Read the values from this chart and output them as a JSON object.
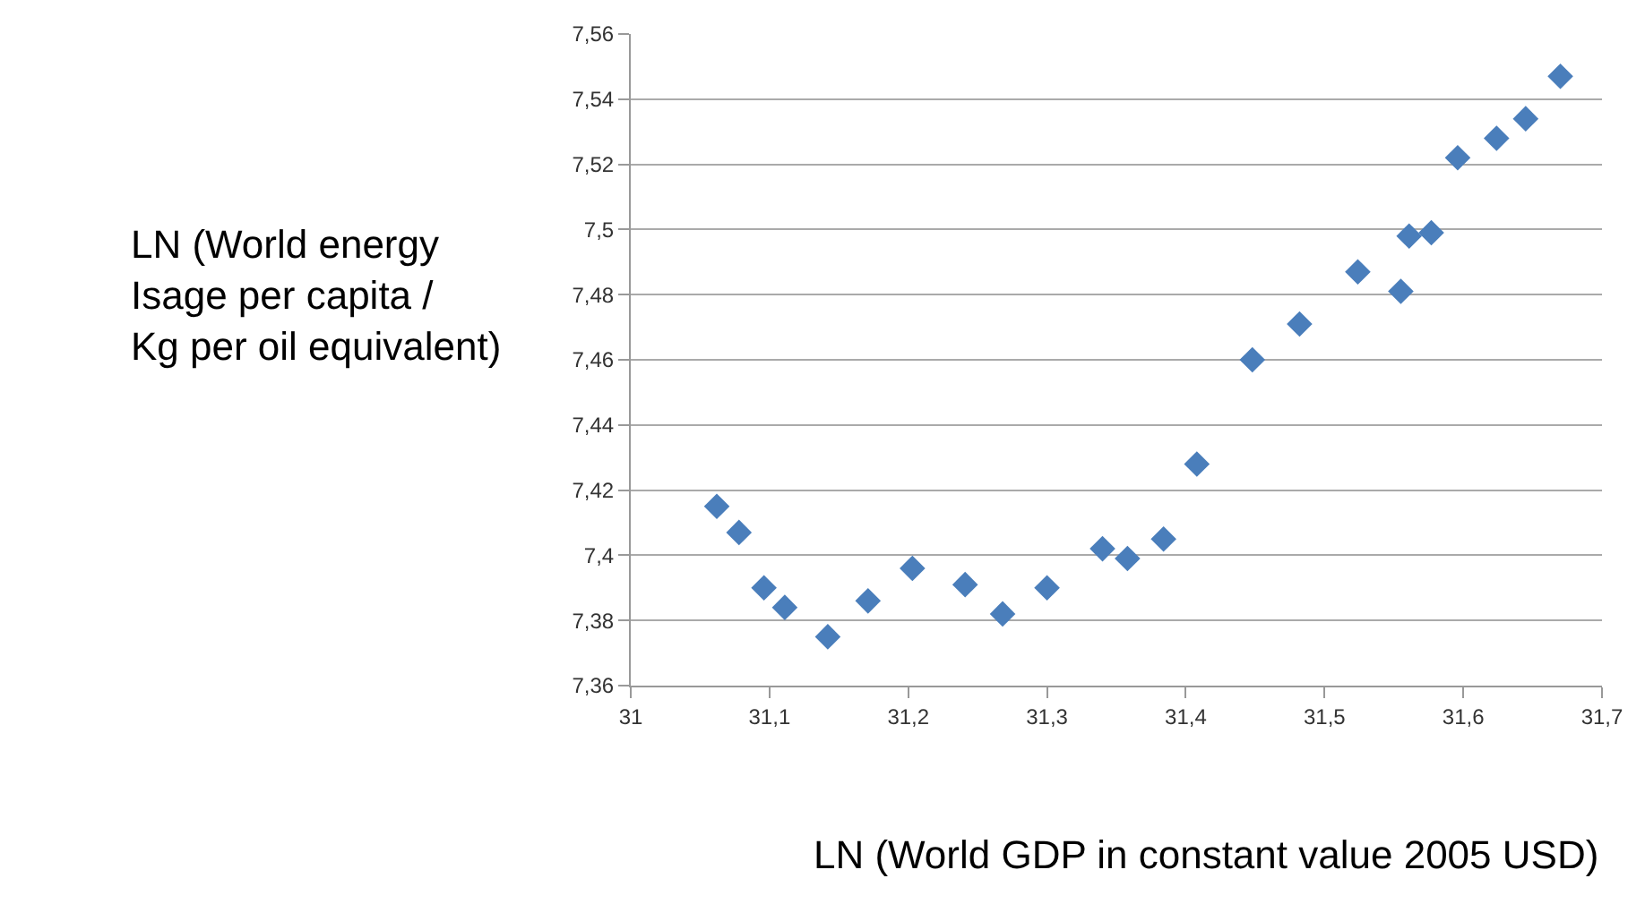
{
  "chart_data": {
    "type": "scatter",
    "xlabel": "LN (World GDP in constant value 2005 USD)",
    "ylabel": "LN (World energy\nIsage per capita /\nKg per oil equivalent)",
    "x": [
      31.062,
      31.078,
      31.096,
      31.111,
      31.142,
      31.171,
      31.203,
      31.241,
      31.268,
      31.3,
      31.34,
      31.358,
      31.384,
      31.408,
      31.448,
      31.482,
      31.524,
      31.555,
      31.561,
      31.577,
      31.596,
      31.624,
      31.645,
      31.67
    ],
    "series": [
      {
        "color": "#4a7ebb",
        "values": [
          7.415,
          7.407,
          7.39,
          7.384,
          7.375,
          7.386,
          7.396,
          7.391,
          7.382,
          7.39,
          7.402,
          7.399,
          7.405,
          7.428,
          7.46,
          7.471,
          7.487,
          7.481,
          7.498,
          7.499,
          7.522,
          7.528,
          7.534,
          7.547
        ]
      }
    ],
    "xlim": [
      31,
      31.7
    ],
    "ylim": [
      7.36,
      7.56
    ],
    "xticks": [
      {
        "value": 31,
        "label": "31"
      },
      {
        "value": 31.1,
        "label": "31,1"
      },
      {
        "value": 31.2,
        "label": "31,2"
      },
      {
        "value": 31.3,
        "label": "31,3"
      },
      {
        "value": 31.4,
        "label": "31,4"
      },
      {
        "value": 31.5,
        "label": "31,5"
      },
      {
        "value": 31.6,
        "label": "31,6"
      },
      {
        "value": 31.7,
        "label": "31,7"
      }
    ],
    "yticks": [
      {
        "value": 7.36,
        "label": "7,36"
      },
      {
        "value": 7.38,
        "label": "7,38"
      },
      {
        "value": 7.4,
        "label": "7,4"
      },
      {
        "value": 7.42,
        "label": "7,42"
      },
      {
        "value": 7.44,
        "label": "7,44"
      },
      {
        "value": 7.46,
        "label": "7,46"
      },
      {
        "value": 7.48,
        "label": "7,48"
      },
      {
        "value": 7.5,
        "label": "7,5"
      },
      {
        "value": 7.52,
        "label": "7,52"
      },
      {
        "value": 7.54,
        "label": "7,54"
      },
      {
        "value": 7.56,
        "label": "7,56"
      }
    ],
    "grid": "y",
    "marker": "diamond",
    "legend": false
  }
}
